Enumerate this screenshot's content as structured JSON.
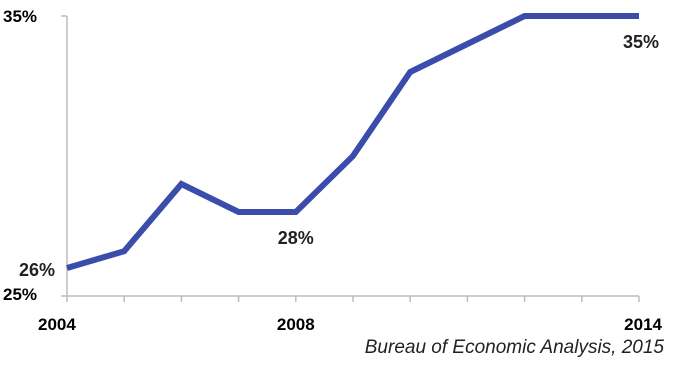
{
  "chart_data": {
    "type": "line",
    "x": [
      2004,
      2005,
      2006,
      2007,
      2008,
      2009,
      2010,
      2011,
      2012,
      2013,
      2014
    ],
    "series": [
      {
        "values": [
          26,
          26.6,
          29,
          28,
          28,
          30,
          33,
          34,
          35,
          35,
          35
        ]
      }
    ],
    "y_tick_labels": [
      {
        "value": 35,
        "label": "35%"
      },
      {
        "value": 25,
        "label": "25%"
      }
    ],
    "x_tick_labels": [
      {
        "value": 2004,
        "label": "2004"
      },
      {
        "value": 2008,
        "label": "2008"
      },
      {
        "value": 2014,
        "label": "2014"
      }
    ],
    "data_labels": [
      {
        "x": 2004,
        "y": 26,
        "label": "26%"
      },
      {
        "x": 2008,
        "y": 28,
        "label": "28%"
      },
      {
        "x": 2014,
        "y": 35,
        "label": "35%"
      }
    ],
    "xlim": [
      2004,
      2014
    ],
    "ylim": [
      25,
      35
    ],
    "grid": false,
    "line_color": "#3a4dab",
    "axis_color": "#bdbdbd"
  },
  "source": "Bureau of Economic Analysis, 2015"
}
